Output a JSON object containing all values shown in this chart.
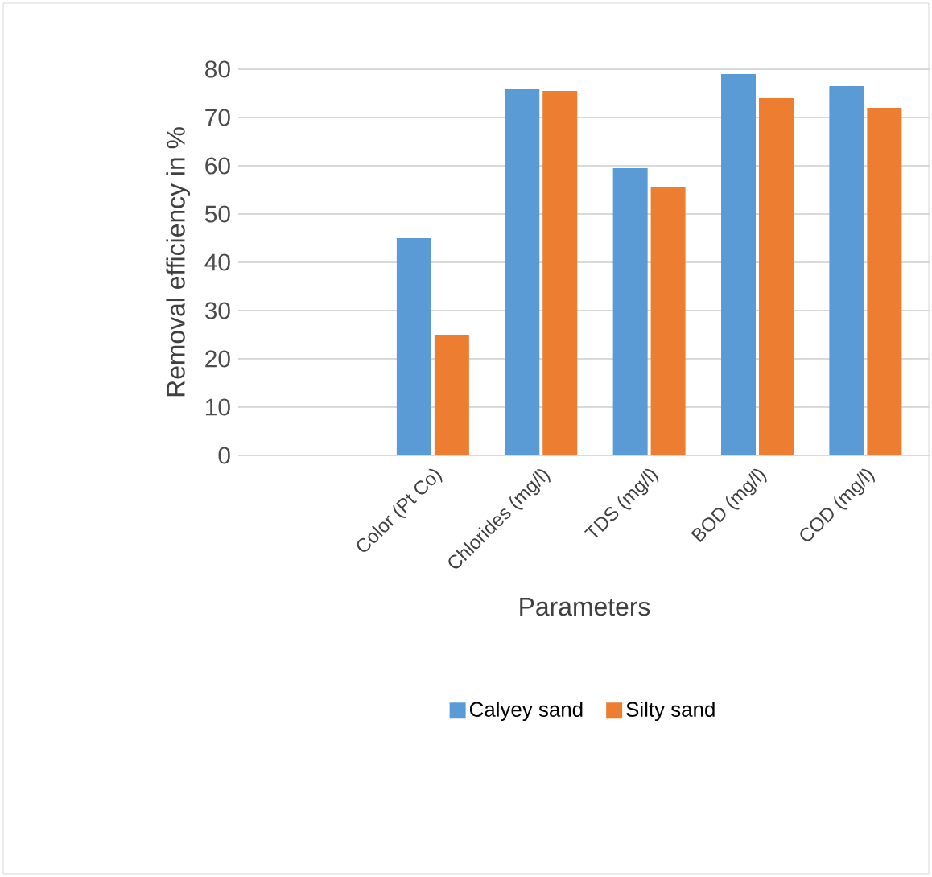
{
  "chart_data": {
    "type": "bar",
    "xlabel": "Parameters",
    "ylabel": "Removal efficiency in %",
    "categories": [
      "Color (Pt Co)",
      "Chlorides (mg/l)",
      "TDS (mg/l)",
      "BOD (mg/l)",
      "COD (mg/l)"
    ],
    "series": [
      {
        "name": "Calyey sand",
        "color": "#5b9bd5",
        "values": [
          45,
          76,
          59.5,
          79,
          76.5
        ]
      },
      {
        "name": "Silty sand",
        "color": "#ed7d31",
        "values": [
          25,
          75.5,
          55.5,
          74,
          72
        ]
      }
    ],
    "ylim": [
      0,
      80
    ],
    "yticks": [
      0,
      10,
      20,
      30,
      40,
      50,
      60,
      70,
      80
    ],
    "grid": "y",
    "legend": "bottom"
  }
}
